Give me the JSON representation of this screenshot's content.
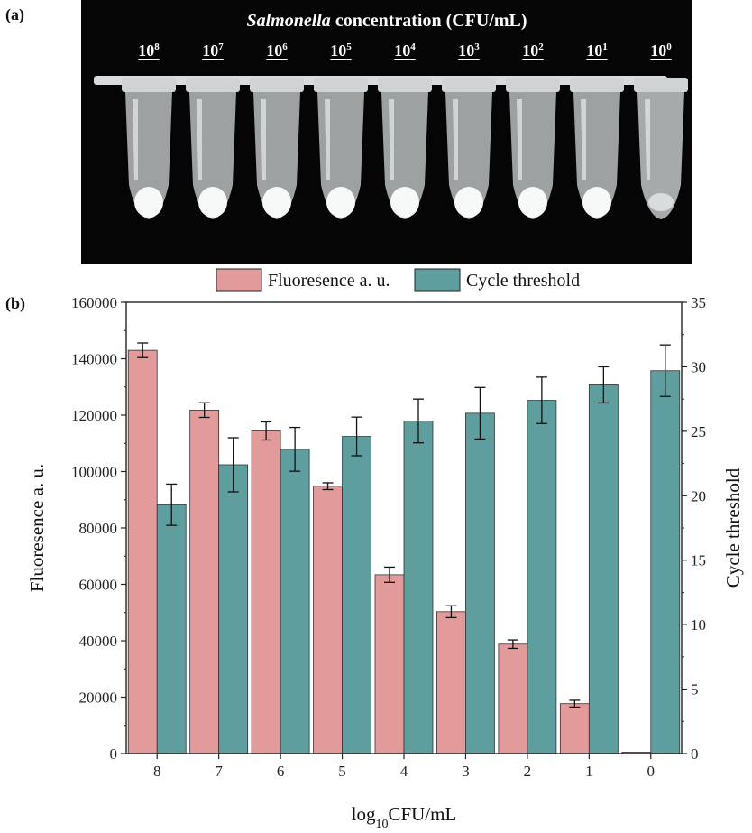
{
  "panel_a": {
    "label": "(a)",
    "title_italic": "Salmonella",
    "title_rest": " concentration (CFU/mL)",
    "tubes": [
      {
        "base": "10",
        "exp": "8"
      },
      {
        "base": "10",
        "exp": "7"
      },
      {
        "base": "10",
        "exp": "6"
      },
      {
        "base": "10",
        "exp": "5"
      },
      {
        "base": "10",
        "exp": "4"
      },
      {
        "base": "10",
        "exp": "3"
      },
      {
        "base": "10",
        "exp": "2"
      },
      {
        "base": "10",
        "exp": "1"
      },
      {
        "base": "10",
        "exp": "0"
      }
    ]
  },
  "panel_b": {
    "label": "(b)"
  },
  "colors": {
    "fluorescence": "#E39A9B",
    "cycle": "#5E9E9E",
    "axis": "#222222"
  },
  "chart_data": {
    "type": "bar",
    "categories": [
      "8",
      "7",
      "6",
      "5",
      "4",
      "3",
      "2",
      "1",
      "0"
    ],
    "series": [
      {
        "name": "Fluoresence a. u.",
        "axis": "left",
        "values": [
          143000,
          121800,
          114400,
          94800,
          63400,
          50300,
          38800,
          17700,
          500
        ],
        "errors": [
          2600,
          2600,
          3200,
          1200,
          2700,
          2100,
          1500,
          1200,
          0
        ]
      },
      {
        "name": "Cycle threshold",
        "axis": "right",
        "values": [
          19.3,
          22.4,
          23.6,
          24.6,
          25.8,
          26.4,
          27.4,
          28.6,
          29.7
        ],
        "errors": [
          1.6,
          2.1,
          1.7,
          1.5,
          1.7,
          2.0,
          1.8,
          1.4,
          2.0
        ]
      }
    ],
    "xlabel_prefix": "log",
    "xlabel_sub": "10",
    "xlabel_suffix": "CFU/mL",
    "ylabel_left": "Fluoresence a. u.",
    "ylabel_right": "Cycle threshold",
    "ylim_left": [
      0,
      160000
    ],
    "ylim_right": [
      0,
      35
    ],
    "yticks_left": [
      "0",
      "20000",
      "40000",
      "60000",
      "80000",
      "100000",
      "120000",
      "140000",
      "160000"
    ],
    "yticks_right": [
      "0",
      "5",
      "10",
      "15",
      "20",
      "25",
      "30",
      "35"
    ],
    "legend_position": "top-center"
  }
}
